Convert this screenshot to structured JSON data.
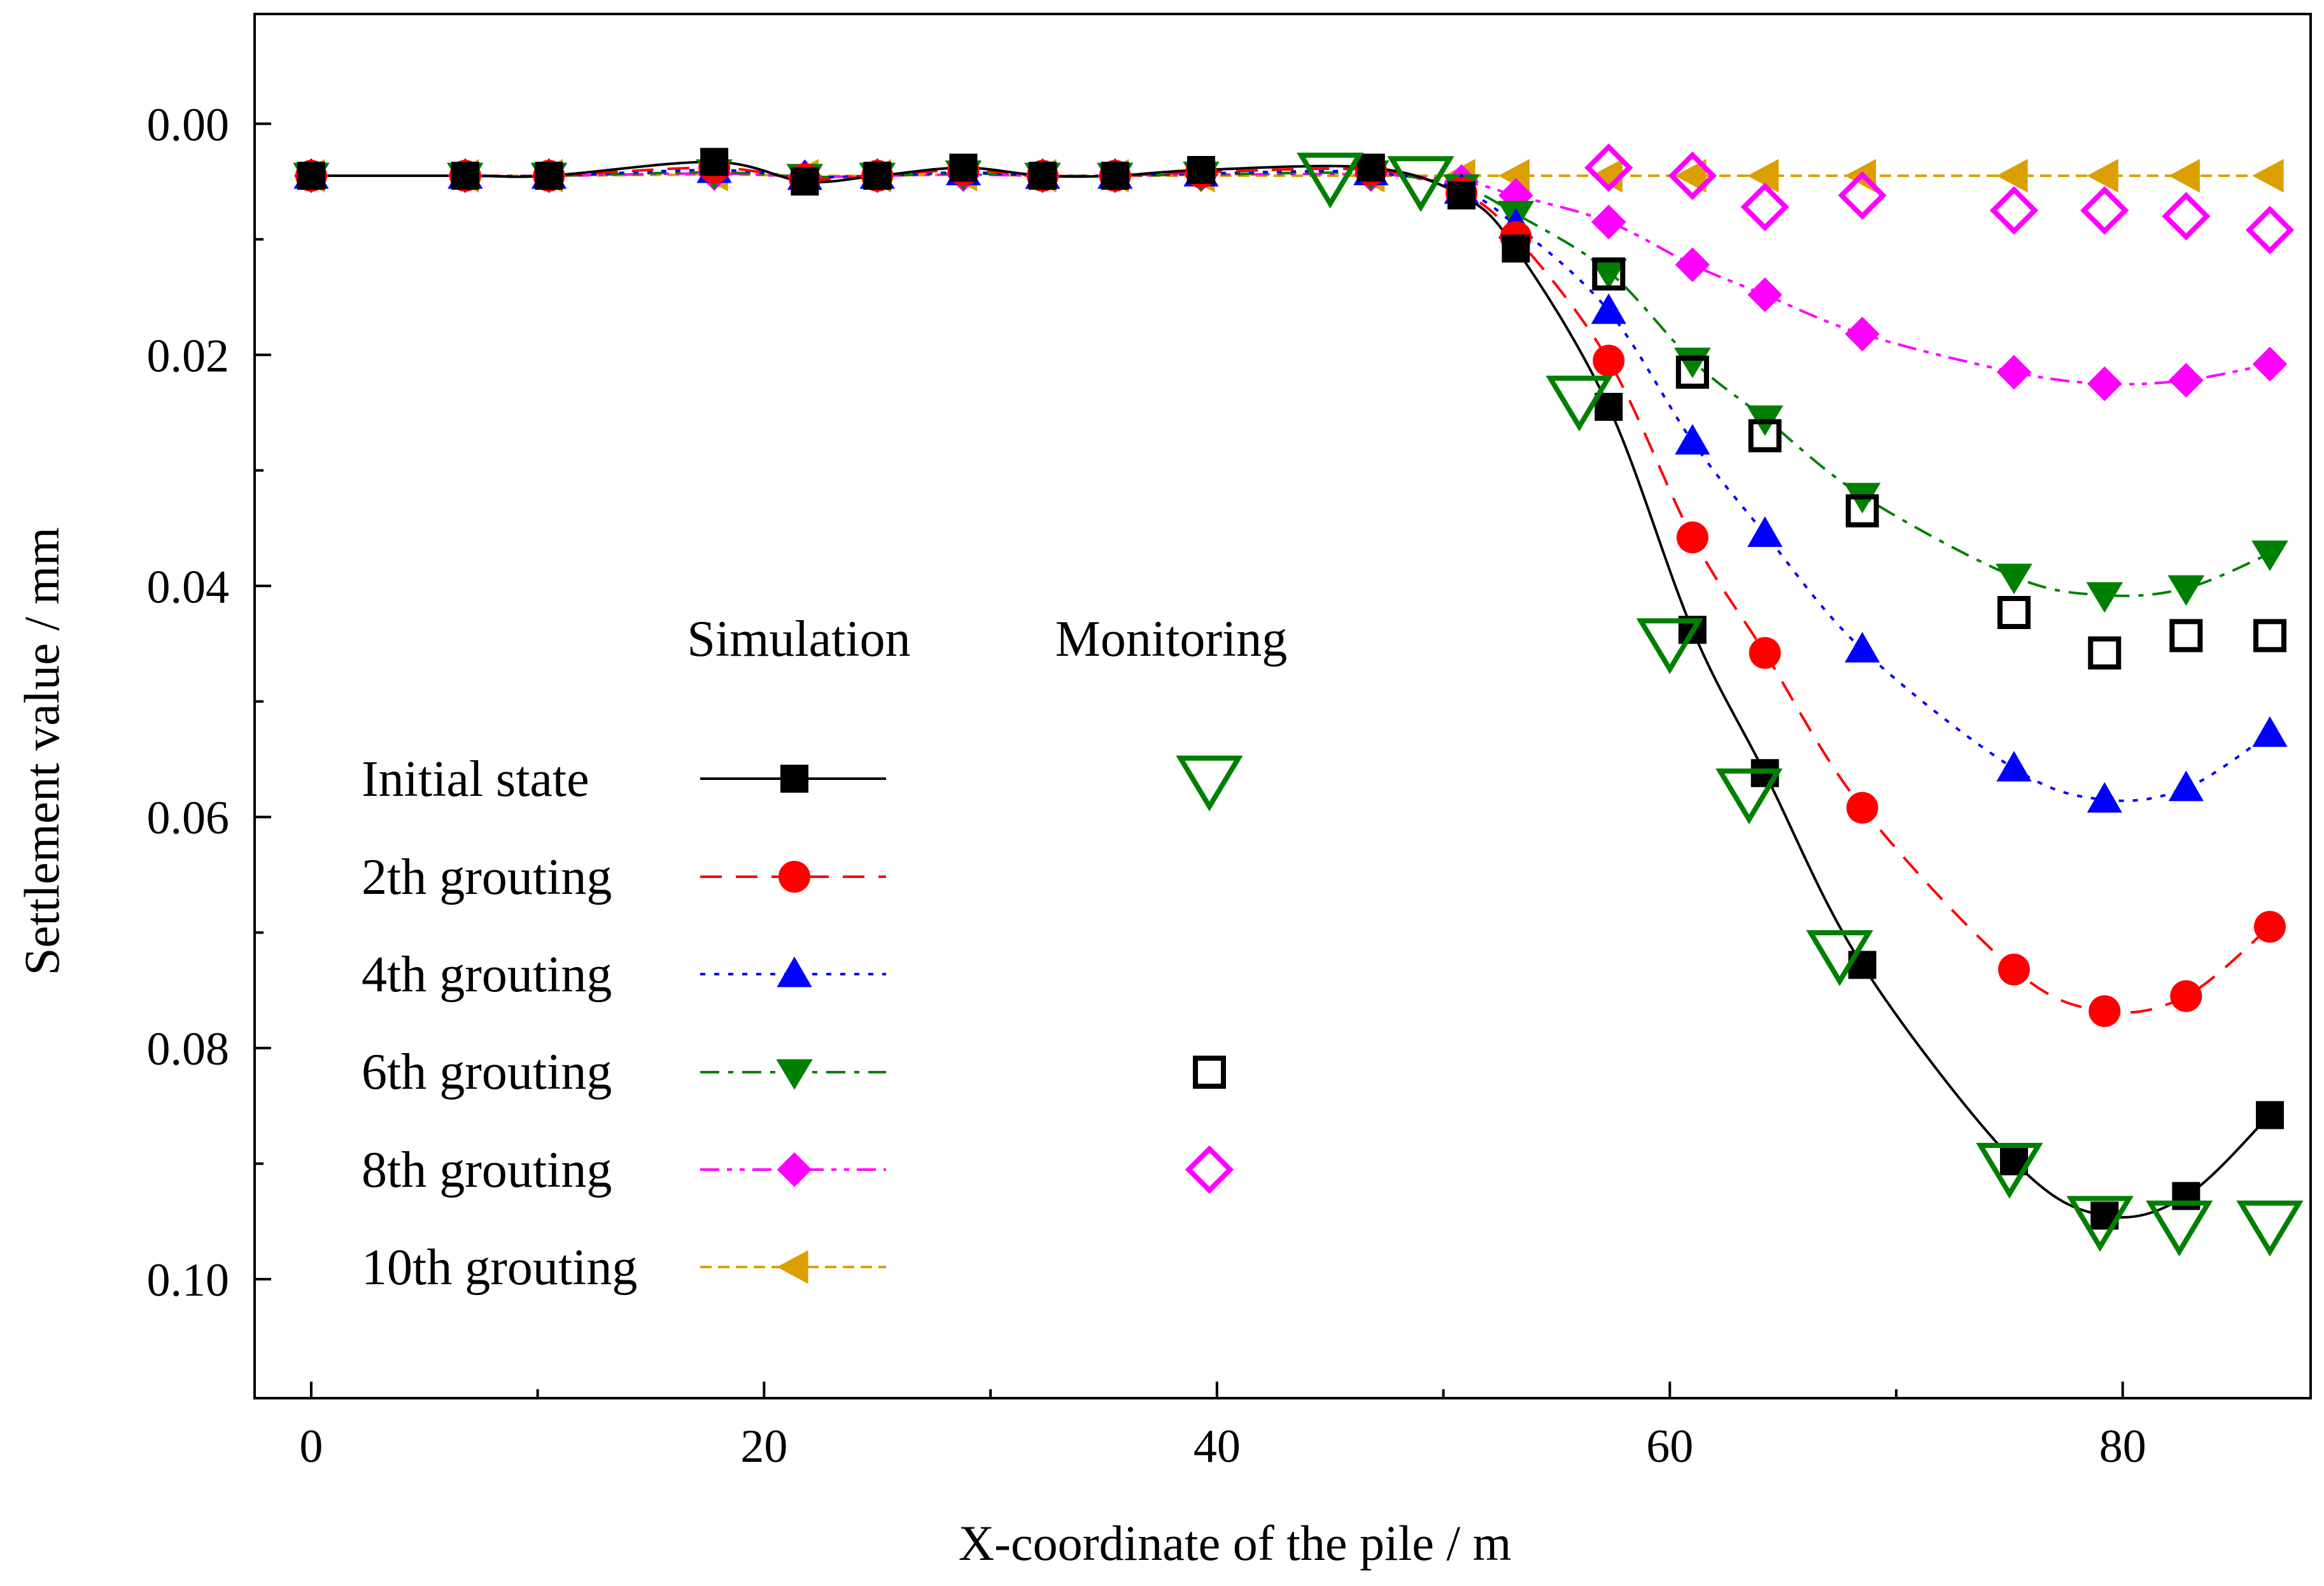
{
  "chart_data": {
    "type": "line",
    "title": "",
    "xlabel": "X-coordinate of the pile / m",
    "ylabel": "Settlement value / mm",
    "xlim": [
      -2.5,
      88.3
    ],
    "ylim": [
      -0.0095,
      0.1103
    ],
    "y_inverted": true,
    "xticks": [
      0,
      20,
      40,
      60,
      80
    ],
    "xtick_labels": [
      "0",
      "20",
      "40",
      "60",
      "80"
    ],
    "yticks": [
      0.0,
      0.02,
      0.04,
      0.06,
      0.08,
      0.1
    ],
    "ytick_labels": [
      "0.00",
      "0.02",
      "0.04",
      "0.06",
      "0.08",
      "0.10"
    ],
    "legend": {
      "placement": "center-left",
      "header_simulation": "Simulation",
      "header_monitoring": "Monitoring",
      "labels": [
        "Initial state",
        "2th grouting",
        "4th grouting",
        "6th grouting",
        "8th grouting",
        "10th grouting"
      ]
    },
    "x": [
      0,
      6.8,
      10.5,
      17.8,
      21.8,
      25.0,
      28.8,
      32.3,
      35.5,
      39.3,
      46.8,
      50.8,
      53.2,
      57.3,
      61.0,
      64.2,
      68.5,
      75.2,
      79.2,
      82.8,
      86.5
    ],
    "series": [
      {
        "name": "Initial state",
        "color": "#000000",
        "marker": "square",
        "dash": "solid",
        "values": [
          0.0045,
          0.0045,
          0.0045,
          0.0033,
          0.005,
          0.0045,
          0.0038,
          0.0045,
          0.0045,
          0.004,
          0.0038,
          0.0062,
          0.0108,
          0.0245,
          0.0438,
          0.0562,
          0.0728,
          0.0898,
          0.0945,
          0.0928,
          0.0858
        ]
      },
      {
        "name": "2th grouting",
        "color": "#ff0000",
        "marker": "circle",
        "dash": "dashed",
        "values": [
          0.0045,
          0.0045,
          0.0045,
          0.0038,
          0.0048,
          0.0045,
          0.004,
          0.0045,
          0.0045,
          0.0042,
          0.004,
          0.006,
          0.0098,
          0.0205,
          0.0358,
          0.0458,
          0.0592,
          0.0732,
          0.0768,
          0.0755,
          0.0695
        ]
      },
      {
        "name": "4th grouting",
        "color": "#0000ff",
        "marker": "triangle-up",
        "dash": "dotted",
        "values": [
          0.0045,
          0.0045,
          0.0045,
          0.004,
          0.0046,
          0.0045,
          0.0042,
          0.0045,
          0.0045,
          0.0043,
          0.0042,
          0.0058,
          0.0088,
          0.0162,
          0.0275,
          0.0355,
          0.0455,
          0.0558,
          0.0585,
          0.0575,
          0.0528
        ]
      },
      {
        "name": "6th grouting",
        "color": "#008000",
        "marker": "triangle-down",
        "dash": "dashdot",
        "values": [
          0.0045,
          0.0045,
          0.0045,
          0.0042,
          0.0046,
          0.0045,
          0.0043,
          0.0045,
          0.0045,
          0.0044,
          0.0043,
          0.0055,
          0.0078,
          0.0128,
          0.0205,
          0.0255,
          0.0322,
          0.0392,
          0.0408,
          0.0402,
          0.0372
        ]
      },
      {
        "name": "8th grouting",
        "color": "#ff00ff",
        "marker": "diamond",
        "dash": "dashdotdot",
        "values": [
          0.0045,
          0.0045,
          0.0045,
          0.0043,
          0.0046,
          0.0045,
          0.0044,
          0.0045,
          0.0045,
          0.0044,
          0.0044,
          0.005,
          0.0062,
          0.0085,
          0.0122,
          0.0148,
          0.0182,
          0.0215,
          0.0225,
          0.0222,
          0.0208
        ]
      },
      {
        "name": "10th grouting",
        "color": "#dba000",
        "marker": "triangle-left",
        "dash": "shortdash",
        "values": [
          0.0045,
          0.0045,
          0.0045,
          0.0044,
          0.0045,
          0.0045,
          0.0044,
          0.0045,
          0.0045,
          0.0045,
          0.0045,
          0.0045,
          0.0045,
          0.0045,
          0.0045,
          0.0045,
          0.0045,
          0.0045,
          0.0045,
          0.0045,
          0.0045
        ]
      }
    ],
    "monitoring": [
      {
        "name": "Initial state",
        "color": "#008000",
        "marker": "triangle-down-open",
        "x": [
          45.0,
          49.0,
          56.0,
          60.0,
          63.5,
          67.5,
          75.0,
          79.0,
          82.5,
          86.5
        ],
        "values": [
          0.0045,
          0.0048,
          0.0238,
          0.0448,
          0.0578,
          0.0718,
          0.0902,
          0.0948,
          0.0952,
          0.0952
        ]
      },
      {
        "name": "6th grouting",
        "color": "#000000",
        "marker": "square-open",
        "x": [
          57.3,
          61.0,
          64.2,
          68.5,
          75.2,
          79.2,
          82.8,
          86.5
        ],
        "values": [
          0.013,
          0.0215,
          0.027,
          0.0335,
          0.0423,
          0.0458,
          0.0443,
          0.0443
        ]
      },
      {
        "name": "8th grouting",
        "color": "#ff00ff",
        "marker": "diamond-open",
        "x": [
          57.3,
          61.0,
          64.2,
          68.5,
          75.2,
          79.2,
          82.8,
          86.5
        ],
        "values": [
          0.0038,
          0.0045,
          0.0072,
          0.0062,
          0.0075,
          0.0075,
          0.008,
          0.0092
        ]
      }
    ]
  }
}
